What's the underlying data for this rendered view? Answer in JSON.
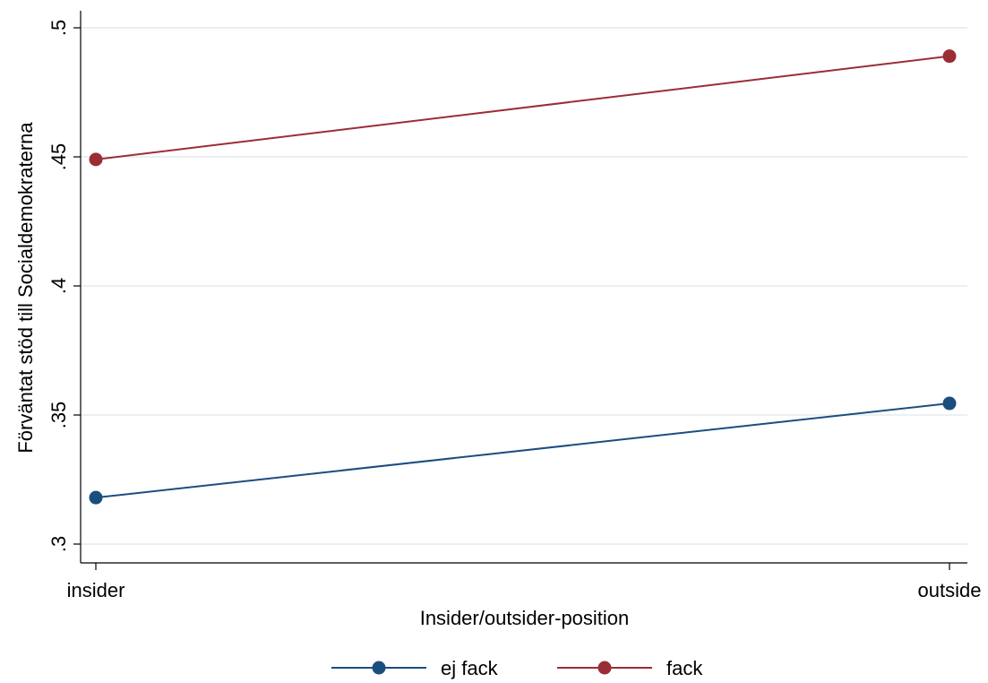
{
  "chart_data": {
    "type": "line",
    "categories": [
      "insider",
      "outside"
    ],
    "xlabel": "Insider/outsider-position",
    "ylabel": "Förväntat stöd till Socialdemokraterna",
    "ylim": [
      0.3,
      0.5
    ],
    "yticks": [
      {
        "value": 0.3,
        "label": ".3"
      },
      {
        "value": 0.35,
        "label": ".35"
      },
      {
        "value": 0.4,
        "label": ".4"
      },
      {
        "value": 0.45,
        "label": ".45"
      },
      {
        "value": 0.5,
        "label": ".5"
      }
    ],
    "grid": true,
    "legend_position": "bottom",
    "series": [
      {
        "name": "ej fack",
        "values": [
          0.318,
          0.3545
        ],
        "color": "#1a4e7f"
      },
      {
        "name": "fack",
        "values": [
          0.449,
          0.489
        ],
        "color": "#9b2d37"
      }
    ]
  }
}
